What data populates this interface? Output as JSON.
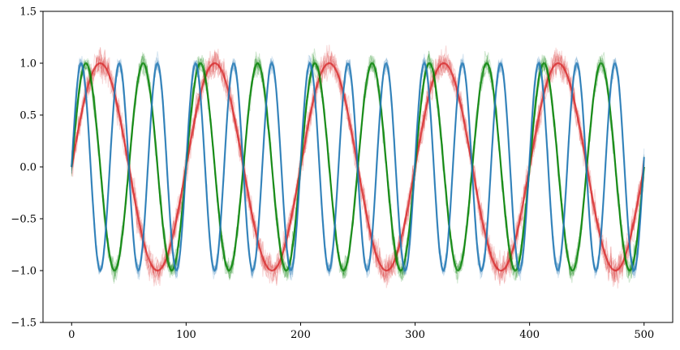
{
  "chart_data": {
    "type": "line",
    "title": "",
    "xlabel": "",
    "ylabel": "",
    "xlim": [
      -25,
      525
    ],
    "ylim": [
      -1.5,
      1.5
    ],
    "x_ticks": [
      0,
      100,
      200,
      300,
      400,
      500
    ],
    "y_ticks": [
      -1.5,
      -1.0,
      -0.5,
      0.0,
      0.5,
      1.0,
      1.5
    ],
    "x_tick_labels": [
      "0",
      "100",
      "200",
      "300",
      "400",
      "500"
    ],
    "y_tick_labels": [
      "−1.5",
      "−1.0",
      "−0.5",
      "0.0",
      "0.5",
      "1.0",
      "1.5"
    ],
    "grid": false,
    "legend": "none",
    "noise_note_shown": false,
    "series": [
      {
        "color": "#d62728",
        "function": "sin",
        "period": 100,
        "x_start": 0,
        "x_end": 500,
        "noise_amplitude": 0.12,
        "realizations": 10
      },
      {
        "color": "#008000",
        "function": "sin",
        "period": 50,
        "x_start": 0,
        "x_end": 500,
        "noise_amplitude": 0.09,
        "realizations": 10
      },
      {
        "color": "#1f77b4",
        "function": "sin",
        "period": 33.3,
        "x_start": 0,
        "x_end": 500,
        "noise_amplitude": 0.07,
        "realizations": 10
      }
    ]
  }
}
